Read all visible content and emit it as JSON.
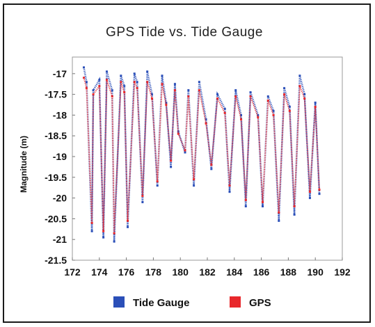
{
  "chart_data": {
    "type": "scatter",
    "title": "GPS Tide vs. Tide Gauge",
    "xlabel": "",
    "ylabel": "Magnitude (m)",
    "xlim": [
      172,
      192
    ],
    "ylim": [
      -21.5,
      -16.6
    ],
    "x_ticks": [
      172,
      174,
      176,
      178,
      180,
      182,
      184,
      186,
      188,
      190,
      192
    ],
    "y_ticks": [
      -17,
      -17.5,
      -18,
      -18.5,
      -19,
      -19.5,
      -20,
      -20.5,
      -21,
      -21.5
    ],
    "grid": false,
    "legend_position": "bottom-center",
    "series": [
      {
        "name": "Tide Gauge",
        "color": "#2b4fb8",
        "marker": "square",
        "x": [
          172.85,
          173.05,
          173.45,
          173.55,
          174.0,
          174.3,
          174.55,
          174.95,
          175.1,
          175.6,
          175.85,
          176.1,
          176.6,
          176.8,
          177.2,
          177.55,
          177.9,
          178.3,
          178.65,
          178.95,
          179.3,
          179.6,
          179.85,
          180.35,
          180.6,
          181.0,
          181.4,
          181.9,
          182.3,
          182.75,
          183.3,
          183.65,
          184.1,
          184.5,
          184.85,
          185.2,
          185.75,
          186.1,
          186.5,
          186.9,
          187.3,
          187.7,
          188.1,
          188.45,
          188.85,
          189.2,
          189.6,
          190.0,
          190.3
        ],
        "y": [
          -16.85,
          -17.2,
          -20.8,
          -17.4,
          -17.15,
          -20.95,
          -16.95,
          -17.4,
          -21.05,
          -17.05,
          -17.3,
          -20.7,
          -17.0,
          -17.2,
          -20.1,
          -16.95,
          -17.5,
          -19.7,
          -17.05,
          -17.7,
          -19.25,
          -17.25,
          -18.4,
          -18.9,
          -17.4,
          -19.7,
          -17.2,
          -18.1,
          -19.3,
          -17.5,
          -17.85,
          -19.85,
          -17.4,
          -18.0,
          -20.2,
          -17.45,
          -18.0,
          -20.2,
          -17.55,
          -17.9,
          -20.55,
          -17.35,
          -17.8,
          -20.4,
          -17.05,
          -17.5,
          -20.0,
          -17.7,
          -19.9
        ]
      },
      {
        "name": "GPS",
        "color": "#e8282c",
        "marker": "square",
        "x": [
          172.85,
          173.05,
          173.45,
          173.55,
          174.0,
          174.3,
          174.55,
          174.95,
          175.1,
          175.6,
          175.85,
          176.1,
          176.6,
          176.8,
          177.2,
          177.55,
          177.9,
          178.3,
          178.65,
          178.95,
          179.3,
          179.6,
          179.85,
          180.35,
          180.6,
          181.0,
          181.4,
          181.9,
          182.3,
          182.75,
          183.3,
          183.65,
          184.1,
          184.5,
          184.85,
          185.2,
          185.75,
          186.1,
          186.5,
          186.9,
          187.3,
          187.7,
          188.1,
          188.45,
          188.85,
          189.2,
          189.6,
          190.0,
          190.3
        ],
        "y": [
          -17.1,
          -17.35,
          -20.6,
          -17.5,
          -17.3,
          -20.8,
          -17.15,
          -17.55,
          -20.85,
          -17.2,
          -17.45,
          -20.55,
          -17.2,
          -17.35,
          -19.95,
          -17.2,
          -17.6,
          -19.6,
          -17.25,
          -17.75,
          -19.1,
          -17.4,
          -18.45,
          -18.85,
          -17.55,
          -19.55,
          -17.4,
          -18.2,
          -19.2,
          -17.6,
          -17.95,
          -19.7,
          -17.55,
          -18.1,
          -20.05,
          -17.55,
          -18.05,
          -20.1,
          -17.65,
          -18.0,
          -20.35,
          -17.5,
          -17.9,
          -20.2,
          -17.3,
          -17.6,
          -19.85,
          -17.8,
          -19.8
        ]
      }
    ]
  }
}
